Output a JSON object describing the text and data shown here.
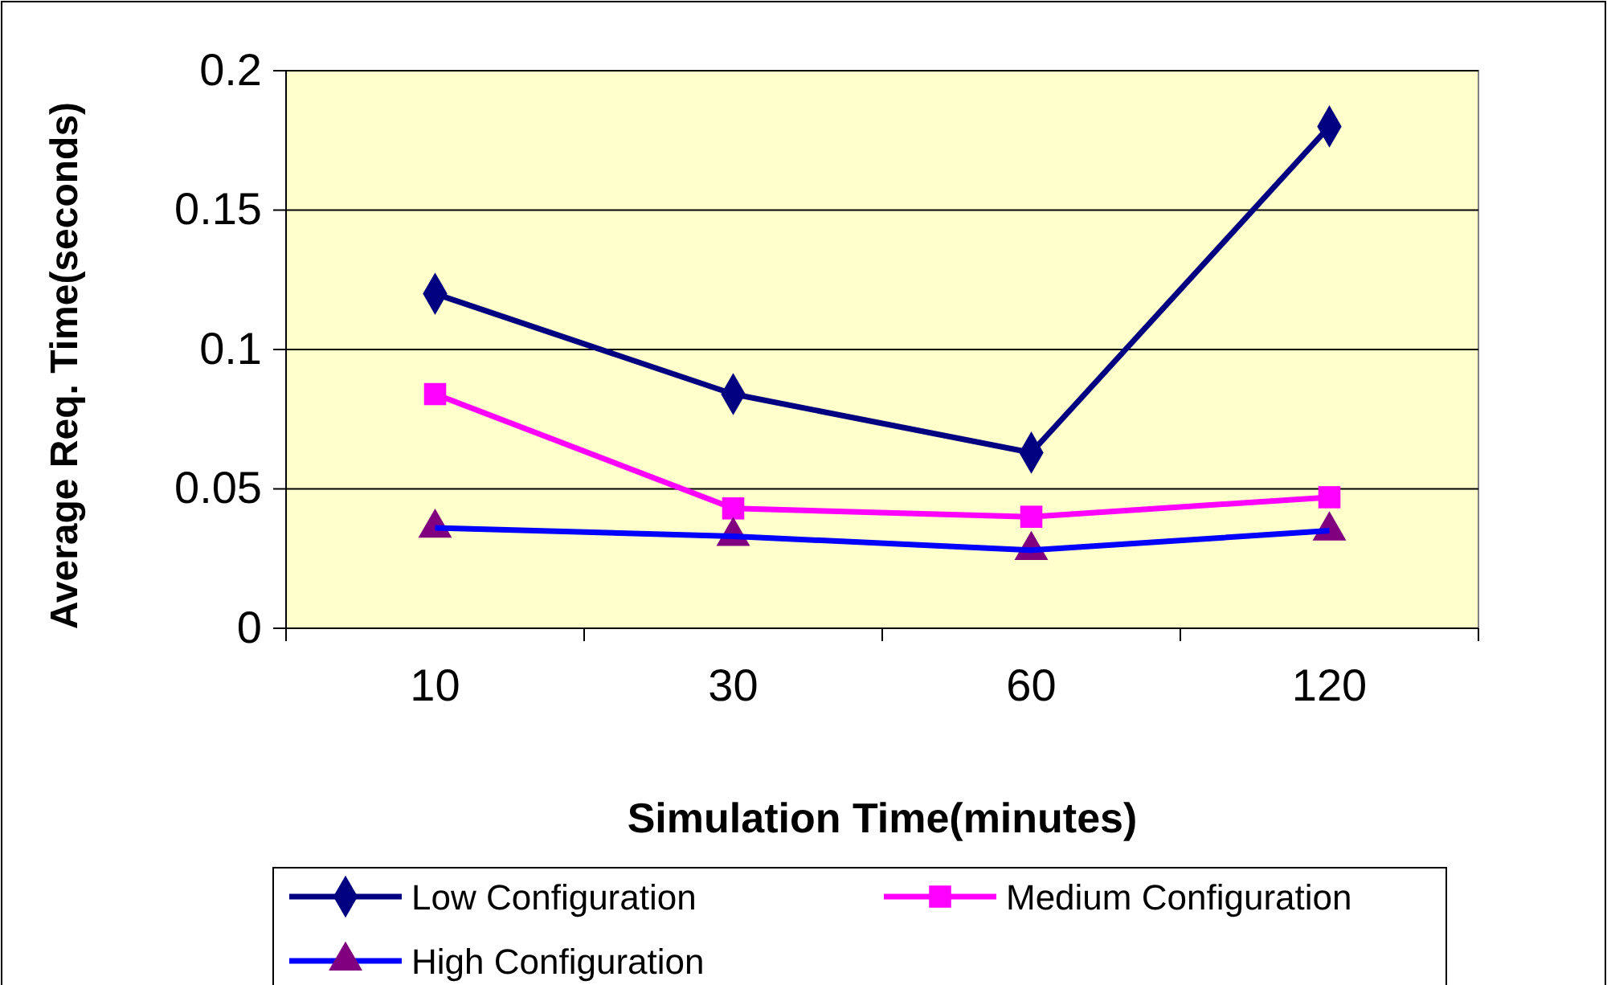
{
  "chart_data": {
    "type": "line",
    "xlabel": "Simulation Time(minutes)",
    "ylabel": "Average Req. Time(seconds)",
    "categories": [
      "10",
      "30",
      "60",
      "120"
    ],
    "ylim": [
      0,
      0.2
    ],
    "yticks": [
      0,
      0.05,
      0.1,
      0.15,
      0.2
    ],
    "grid": "y",
    "legend": "bottom",
    "series": [
      {
        "name": "Low Configuration",
        "color": "#000080",
        "marker": "diamond",
        "values": [
          0.12,
          0.084,
          0.063,
          0.18
        ]
      },
      {
        "name": "Medium Configuration",
        "color": "#ff00ff",
        "marker": "square",
        "values": [
          0.084,
          0.043,
          0.04,
          0.047
        ]
      },
      {
        "name": "High Configuration",
        "color": "#0000ff",
        "colors": [
          "#800080",
          "#800080",
          "#800080",
          "#800080"
        ],
        "marker": "triangle",
        "values": [
          0.036,
          0.033,
          0.028,
          0.035
        ]
      }
    ]
  }
}
